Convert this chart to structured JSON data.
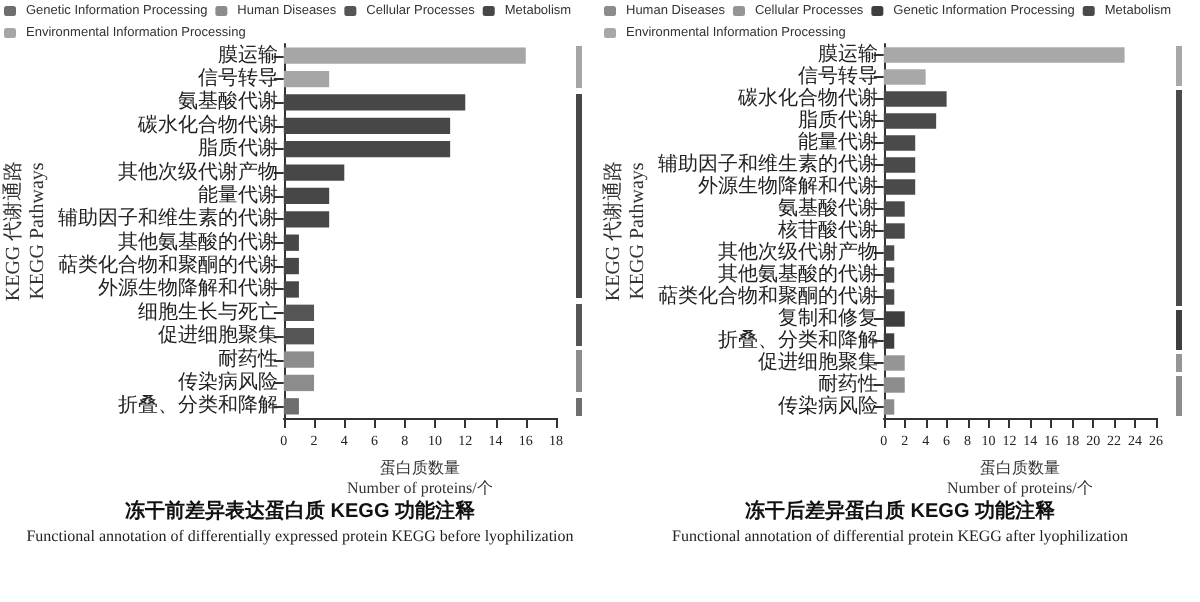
{
  "chart_data": [
    {
      "type": "bar",
      "orientation": "horizontal",
      "title": "冻干前差异表达蛋白质 KEGG 功能注释",
      "subtitle": "Functional annotation of differentially expressed protein KEGG before lyophilization",
      "xlabel": "蛋白质数量\nNumber of proteins/个",
      "ylabel": "KEGG 代谢通路\nKEGG Pathways",
      "categories": [
        "膜运输",
        "信号转导",
        "氨基酸代谢",
        "碳水化合物代谢",
        "脂质代谢",
        "其他次级代谢产物",
        "能量代谢",
        "辅助因子和维生素的代谢",
        "其他氨基酸的代谢",
        "萜类化合物和聚酮的代谢",
        "外源生物降解和代谢",
        "细胞生长与死亡",
        "促进细胞聚集",
        "耐药性",
        "传染病风险",
        "折叠、分类和降解"
      ],
      "series": [
        {
          "name": "Genetic Information Processing",
          "color": "#6e6e6e",
          "values": [
            null,
            null,
            null,
            null,
            null,
            null,
            null,
            null,
            null,
            null,
            null,
            null,
            null,
            null,
            null,
            1
          ]
        },
        {
          "name": "Human Diseases",
          "color": "#8c8c8c",
          "values": [
            null,
            null,
            null,
            null,
            null,
            null,
            null,
            null,
            null,
            null,
            null,
            null,
            null,
            2,
            2,
            null
          ]
        },
        {
          "name": "Cellular Processes",
          "color": "#555555",
          "values": [
            null,
            null,
            null,
            null,
            null,
            null,
            null,
            null,
            null,
            null,
            null,
            2,
            2,
            null,
            null,
            null
          ]
        },
        {
          "name": "Metabolism",
          "color": "#474747",
          "values": [
            null,
            null,
            12,
            11,
            11,
            4,
            3,
            3,
            1,
            1,
            1,
            null,
            null,
            null,
            null,
            null
          ]
        },
        {
          "name": "Environmental Information Processing",
          "color": "#a6a6a6",
          "values": [
            16,
            3,
            null,
            null,
            null,
            null,
            null,
            null,
            null,
            null,
            null,
            null,
            null,
            null,
            null,
            null
          ]
        }
      ],
      "xlim": [
        0,
        18
      ],
      "xticks": [
        0,
        2,
        4,
        6,
        8,
        10,
        12,
        14,
        16,
        18
      ],
      "legend": "top"
    },
    {
      "type": "bar",
      "orientation": "horizontal",
      "title": "冻干后差异蛋白质 KEGG 功能注释",
      "subtitle": "Functional annotation of differential protein KEGG after lyophilization",
      "xlabel": "蛋白质数量\nNumber of proteins/个",
      "ylabel": "KEGG 代谢通路\nKEGG Pathways",
      "categories": [
        "膜运输",
        "信号转导",
        "碳水化合物代谢",
        "脂质代谢",
        "能量代谢",
        "辅助因子和维生素的代谢",
        "外源生物降解和代谢",
        "氨基酸代谢",
        "核苷酸代谢",
        "其他次级代谢产物",
        "其他氨基酸的代谢",
        "萜类化合物和聚酮的代谢",
        "复制和修复",
        "折叠、分类和降解",
        "促进细胞聚集",
        "耐药性",
        "传染病风险"
      ],
      "series": [
        {
          "name": "Human Diseases",
          "color": "#8c8c8c",
          "values": [
            null,
            null,
            null,
            null,
            null,
            null,
            null,
            null,
            null,
            null,
            null,
            null,
            null,
            null,
            null,
            2,
            1
          ]
        },
        {
          "name": "Cellular Processes",
          "color": "#959595",
          "values": [
            null,
            null,
            null,
            null,
            null,
            null,
            null,
            null,
            null,
            null,
            null,
            null,
            null,
            null,
            2,
            null,
            null
          ]
        },
        {
          "name": "Genetic Information Processing",
          "color": "#3e3e3e",
          "values": [
            null,
            null,
            null,
            null,
            null,
            null,
            null,
            null,
            null,
            null,
            null,
            null,
            2,
            1,
            null,
            null,
            null
          ]
        },
        {
          "name": "Metabolism",
          "color": "#4a4a4a",
          "values": [
            null,
            null,
            6,
            5,
            3,
            3,
            3,
            2,
            2,
            1,
            1,
            1,
            null,
            null,
            null,
            null,
            null
          ]
        },
        {
          "name": "Environmental Information Processing",
          "color": "#a8a8a8",
          "values": [
            23,
            4,
            null,
            null,
            null,
            null,
            null,
            null,
            null,
            null,
            null,
            null,
            null,
            null,
            null,
            null,
            null
          ]
        }
      ],
      "xlim": [
        0,
        26
      ],
      "xticks": [
        0,
        2,
        4,
        6,
        8,
        10,
        12,
        14,
        16,
        18,
        20,
        22,
        24,
        26
      ],
      "legend": "top"
    }
  ]
}
